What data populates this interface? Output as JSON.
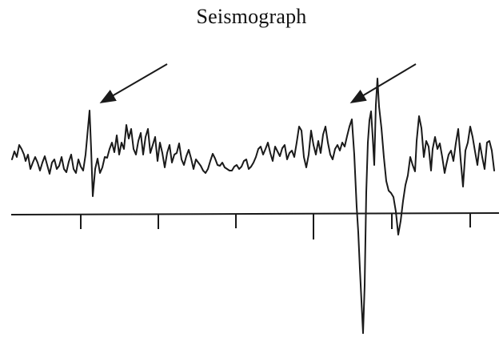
{
  "title": "Seismograph",
  "colors": {
    "ink": "#1a1a1a",
    "background": "#ffffff"
  },
  "annotations": [
    {
      "type": "arrow",
      "points_to": "first-wave-arrival"
    },
    {
      "type": "arrow",
      "points_to": "second-wave-arrival"
    }
  ]
}
